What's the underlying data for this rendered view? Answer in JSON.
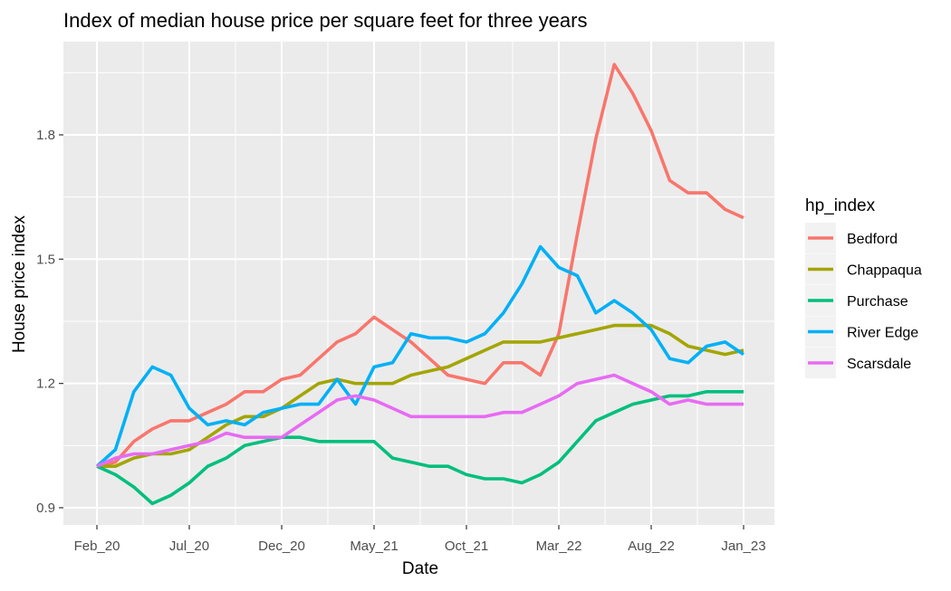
{
  "chart_data": {
    "type": "line",
    "title": "Index of median house price per square feet for three years",
    "xlabel": "Date",
    "ylabel": "House price index",
    "x_ticks": [
      "Feb_20",
      "Jul_20",
      "Dec_20",
      "May_21",
      "Oct_21",
      "Mar_22",
      "Aug_22",
      "Jan_23"
    ],
    "x": [
      "Feb_20",
      "Mar_20",
      "Apr_20",
      "May_20",
      "Jun_20",
      "Jul_20",
      "Aug_20",
      "Sep_20",
      "Oct_20",
      "Nov_20",
      "Dec_20",
      "Jan_21",
      "Feb_21",
      "Mar_21",
      "Apr_21",
      "May_21",
      "Jun_21",
      "Jul_21",
      "Aug_21",
      "Sep_21",
      "Oct_21",
      "Nov_21",
      "Dec_21",
      "Jan_22",
      "Feb_22",
      "Mar_22",
      "Apr_22",
      "May_22",
      "Jun_22",
      "Jul_22",
      "Aug_22",
      "Sep_22",
      "Oct_22",
      "Nov_22",
      "Dec_22",
      "Jan_23"
    ],
    "ylim": [
      0.87,
      1.97
    ],
    "y_ticks": [
      0.9,
      1.2,
      1.5,
      1.8
    ],
    "grid": true,
    "background": "#ebebeb",
    "legend": {
      "title": "hp_index",
      "placement": "right"
    },
    "series": [
      {
        "name": "Bedford",
        "color": "#f8766d",
        "values": [
          1.0,
          1.01,
          1.06,
          1.09,
          1.11,
          1.11,
          1.13,
          1.15,
          1.18,
          1.18,
          1.21,
          1.22,
          1.26,
          1.3,
          1.32,
          1.36,
          1.33,
          1.3,
          1.26,
          1.22,
          1.21,
          1.2,
          1.25,
          1.25,
          1.22,
          1.32,
          1.56,
          1.79,
          1.97,
          1.9,
          1.81,
          1.69,
          1.66,
          1.66,
          1.62,
          1.6
        ]
      },
      {
        "name": "Chappaqua",
        "color": "#a3a500",
        "values": [
          1.0,
          1.0,
          1.02,
          1.03,
          1.03,
          1.04,
          1.07,
          1.1,
          1.12,
          1.12,
          1.14,
          1.17,
          1.2,
          1.21,
          1.2,
          1.2,
          1.2,
          1.22,
          1.23,
          1.24,
          1.26,
          1.28,
          1.3,
          1.3,
          1.3,
          1.31,
          1.32,
          1.33,
          1.34,
          1.34,
          1.34,
          1.32,
          1.29,
          1.28,
          1.27,
          1.28
        ]
      },
      {
        "name": "Purchase",
        "color": "#00bf7d",
        "values": [
          1.0,
          0.98,
          0.95,
          0.91,
          0.93,
          0.96,
          1.0,
          1.02,
          1.05,
          1.06,
          1.07,
          1.07,
          1.06,
          1.06,
          1.06,
          1.06,
          1.02,
          1.01,
          1.0,
          1.0,
          0.98,
          0.97,
          0.97,
          0.96,
          0.98,
          1.01,
          1.06,
          1.11,
          1.13,
          1.15,
          1.16,
          1.17,
          1.17,
          1.18,
          1.18,
          1.18
        ]
      },
      {
        "name": "River Edge",
        "color": "#00b0f6",
        "values": [
          1.0,
          1.04,
          1.18,
          1.24,
          1.22,
          1.14,
          1.1,
          1.11,
          1.1,
          1.13,
          1.14,
          1.15,
          1.15,
          1.21,
          1.15,
          1.24,
          1.25,
          1.32,
          1.31,
          1.31,
          1.3,
          1.32,
          1.37,
          1.44,
          1.53,
          1.48,
          1.46,
          1.37,
          1.4,
          1.37,
          1.33,
          1.26,
          1.25,
          1.29,
          1.3,
          1.27
        ]
      },
      {
        "name": "Scarsdale",
        "color": "#e76bf3",
        "values": [
          1.0,
          1.02,
          1.03,
          1.03,
          1.04,
          1.05,
          1.06,
          1.08,
          1.07,
          1.07,
          1.07,
          1.1,
          1.13,
          1.16,
          1.17,
          1.16,
          1.14,
          1.12,
          1.12,
          1.12,
          1.12,
          1.12,
          1.13,
          1.13,
          1.15,
          1.17,
          1.2,
          1.21,
          1.22,
          1.2,
          1.18,
          1.15,
          1.16,
          1.15,
          1.15,
          1.15
        ]
      }
    ]
  }
}
